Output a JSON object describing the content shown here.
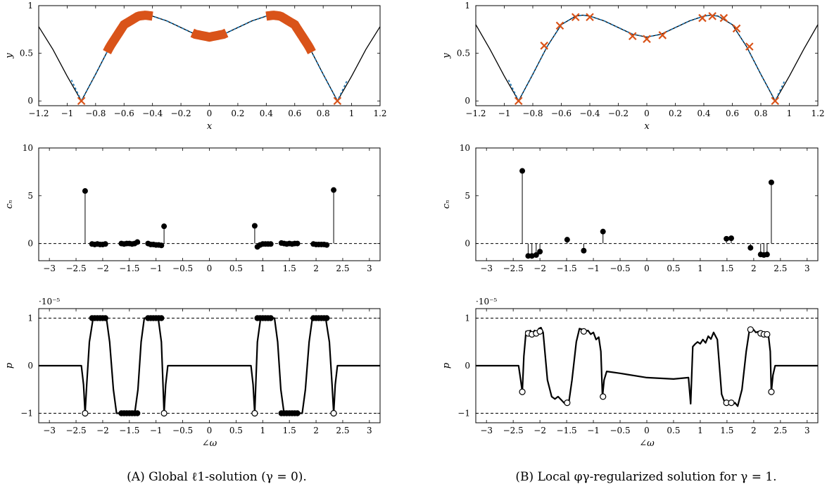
{
  "captions": {
    "left": "(A) Global ℓ1-solution (γ = 0).",
    "right": "(B) Local φγ-regularized solution for γ = 1."
  },
  "colors": {
    "curve": "#000000",
    "dashed_fit": "#1f77b4",
    "marker": "#d95319"
  },
  "chart_data": [
    {
      "id": "top-left",
      "type": "line",
      "xlabel": "x",
      "ylabel": "y",
      "xlim": [
        -1.2,
        1.2
      ],
      "ylim": [
        -0.05,
        1.0
      ],
      "xticks": [
        -1.2,
        -1,
        -0.8,
        -0.6,
        -0.4,
        -0.2,
        0,
        0.2,
        0.4,
        0.6,
        0.8,
        1,
        1.2
      ],
      "yticks": [
        0,
        0.5,
        1
      ],
      "series": [
        {
          "role": "curve",
          "x": [
            -1.2,
            -1.1,
            -1.0,
            -0.9,
            -0.8,
            -0.7,
            -0.6,
            -0.5,
            -0.45,
            -0.4,
            -0.3,
            -0.2,
            -0.1,
            0,
            0.1,
            0.2,
            0.3,
            0.4,
            0.45,
            0.5,
            0.6,
            0.7,
            0.8,
            0.9,
            1.0,
            1.1,
            1.2
          ],
          "y": [
            0.78,
            0.54,
            0.26,
            0.0,
            0.28,
            0.57,
            0.8,
            0.89,
            0.9,
            0.89,
            0.84,
            0.77,
            0.7,
            0.67,
            0.7,
            0.77,
            0.84,
            0.89,
            0.9,
            0.89,
            0.8,
            0.57,
            0.28,
            0.0,
            0.26,
            0.54,
            0.78
          ]
        },
        {
          "role": "fit",
          "x": [
            -0.97,
            -0.9,
            -0.8,
            -0.7,
            -0.6,
            -0.5,
            -0.45,
            -0.4,
            -0.3,
            -0.2,
            -0.1,
            0,
            0.1,
            0.2,
            0.3,
            0.4,
            0.45,
            0.5,
            0.6,
            0.7,
            0.8,
            0.9,
            0.97
          ],
          "y": [
            0.22,
            0.0,
            0.28,
            0.57,
            0.8,
            0.89,
            0.9,
            0.89,
            0.84,
            0.77,
            0.7,
            0.67,
            0.7,
            0.77,
            0.84,
            0.89,
            0.9,
            0.89,
            0.8,
            0.57,
            0.28,
            0.0,
            0.22
          ]
        },
        {
          "role": "support",
          "segments": [
            [
              -0.72,
              -0.4
            ],
            [
              -0.12,
              0.12
            ],
            [
              0.4,
              0.72
            ]
          ]
        },
        {
          "role": "markers",
          "x": [
            -0.9,
            0.9
          ],
          "y": [
            0.0,
            0.0
          ]
        }
      ]
    },
    {
      "id": "top-right",
      "type": "line",
      "xlabel": "x",
      "ylabel": "y",
      "xlim": [
        -1.2,
        1.2
      ],
      "ylim": [
        -0.05,
        1.0
      ],
      "xticks": [
        -1.2,
        -1,
        -0.8,
        -0.6,
        -0.4,
        -0.2,
        0,
        0.2,
        0.4,
        0.6,
        0.8,
        1,
        1.2
      ],
      "yticks": [
        0,
        0.5,
        1
      ],
      "series": [
        {
          "role": "curve",
          "x": [
            -1.2,
            -1.1,
            -1.0,
            -0.9,
            -0.8,
            -0.7,
            -0.6,
            -0.5,
            -0.45,
            -0.4,
            -0.3,
            -0.2,
            -0.1,
            0,
            0.1,
            0.2,
            0.3,
            0.4,
            0.45,
            0.5,
            0.6,
            0.7,
            0.8,
            0.9,
            1.0,
            1.1,
            1.2
          ],
          "y": [
            0.8,
            0.54,
            0.26,
            0.0,
            0.28,
            0.57,
            0.8,
            0.89,
            0.9,
            0.89,
            0.84,
            0.77,
            0.7,
            0.67,
            0.7,
            0.77,
            0.84,
            0.89,
            0.9,
            0.89,
            0.8,
            0.57,
            0.28,
            0.0,
            0.26,
            0.54,
            0.8
          ]
        },
        {
          "role": "fit",
          "x": [
            -0.97,
            -0.9,
            -0.8,
            -0.7,
            -0.6,
            -0.5,
            -0.45,
            -0.4,
            -0.3,
            -0.2,
            -0.1,
            0,
            0.1,
            0.2,
            0.3,
            0.4,
            0.45,
            0.5,
            0.6,
            0.7,
            0.8,
            0.9,
            0.97
          ],
          "y": [
            0.22,
            0.0,
            0.28,
            0.57,
            0.8,
            0.89,
            0.9,
            0.89,
            0.84,
            0.77,
            0.7,
            0.67,
            0.7,
            0.77,
            0.84,
            0.89,
            0.9,
            0.89,
            0.8,
            0.57,
            0.28,
            0.0,
            0.22
          ]
        },
        {
          "role": "markers",
          "x": [
            -0.9,
            -0.72,
            -0.61,
            -0.5,
            -0.4,
            -0.1,
            0,
            0.11,
            0.39,
            0.46,
            0.54,
            0.63,
            0.72,
            0.9
          ],
          "y": [
            0.0,
            0.58,
            0.79,
            0.88,
            0.88,
            0.68,
            0.65,
            0.69,
            0.87,
            0.89,
            0.87,
            0.76,
            0.57,
            0.0
          ]
        }
      ]
    },
    {
      "id": "mid-left",
      "type": "stem",
      "ylabel": "c_n",
      "xlim": [
        -3.2,
        3.2
      ],
      "ylim": [
        -1.8,
        10
      ],
      "xticks": [
        -3,
        -2.5,
        -2,
        -1.5,
        -1,
        -0.5,
        0,
        0.5,
        1,
        1.5,
        2,
        2.5,
        3
      ],
      "yticks": [
        0,
        5,
        10
      ],
      "x": [
        -2.33,
        -2.2,
        -2.15,
        -2.1,
        -2.05,
        -2.0,
        -1.95,
        -1.65,
        -1.6,
        -1.55,
        -1.5,
        -1.45,
        -1.4,
        -1.35,
        -1.15,
        -1.1,
        -1.05,
        -1.0,
        -0.95,
        -0.9,
        -0.85,
        0.85,
        0.9,
        0.95,
        1.0,
        1.05,
        1.1,
        1.15,
        1.35,
        1.4,
        1.45,
        1.5,
        1.55,
        1.6,
        1.65,
        1.95,
        2.0,
        2.05,
        2.1,
        2.15,
        2.2,
        2.33
      ],
      "y": [
        5.5,
        -0.05,
        -0.1,
        -0.05,
        -0.1,
        -0.1,
        -0.05,
        0.0,
        -0.05,
        0.0,
        0.0,
        -0.05,
        0.0,
        0.15,
        0.0,
        -0.1,
        -0.1,
        -0.15,
        -0.15,
        -0.2,
        1.8,
        1.85,
        -0.35,
        -0.15,
        -0.05,
        -0.05,
        -0.05,
        -0.05,
        0.05,
        0.0,
        -0.05,
        0.0,
        -0.05,
        0.0,
        0.0,
        -0.05,
        -0.1,
        -0.1,
        -0.1,
        -0.1,
        -0.15,
        5.6
      ]
    },
    {
      "id": "mid-right",
      "type": "stem",
      "ylabel": "c_n",
      "xlim": [
        -3.2,
        3.2
      ],
      "ylim": [
        -1.8,
        10
      ],
      "xticks": [
        -3,
        -2.5,
        -2,
        -1.5,
        -1,
        -0.5,
        0,
        0.5,
        1,
        1.5,
        2,
        2.5,
        3
      ],
      "yticks": [
        0,
        5,
        10
      ],
      "x": [
        -2.33,
        -2.22,
        -2.15,
        -2.07,
        -2.0,
        -1.49,
        -1.18,
        -0.82,
        1.49,
        1.58,
        1.94,
        2.13,
        2.19,
        2.25,
        2.33
      ],
      "y": [
        7.6,
        -1.3,
        -1.3,
        -1.2,
        -0.85,
        0.4,
        -0.75,
        1.25,
        0.5,
        0.55,
        -0.45,
        -1.15,
        -1.2,
        -1.15,
        6.4
      ]
    },
    {
      "id": "bottom-left",
      "type": "line",
      "xlabel": "∠ω",
      "ylabel": "p",
      "yscale_label": "·10⁻⁵",
      "xlim": [
        -3.2,
        3.2
      ],
      "ylim": [
        -1.2,
        1.2
      ],
      "xticks": [
        -3,
        -2.5,
        -2,
        -1.5,
        -1,
        -0.5,
        0,
        0.5,
        1,
        1.5,
        2,
        2.5,
        3
      ],
      "yticks": [
        -1,
        0,
        1
      ],
      "reference_lines": [
        1,
        -1
      ],
      "series": [
        {
          "role": "dual",
          "x": [
            -3.2,
            -2.4,
            -2.36,
            -2.33,
            -2.3,
            -2.25,
            -2.18,
            -2.12,
            -1.93,
            -1.87,
            -1.8,
            -1.74,
            -1.68,
            -1.4,
            -1.34,
            -1.28,
            -1.22,
            -1.16,
            -0.96,
            -0.9,
            -0.87,
            -0.85,
            -0.82,
            -0.78,
            0,
            0.78,
            0.82,
            0.85,
            0.87,
            0.9,
            0.96,
            1.16,
            1.22,
            1.28,
            1.34,
            1.4,
            1.68,
            1.74,
            1.8,
            1.87,
            1.93,
            2.12,
            2.18,
            2.25,
            2.3,
            2.33,
            2.36,
            2.4,
            3.2
          ],
          "y": [
            0,
            0,
            -0.4,
            -1.0,
            -0.4,
            0.5,
            1.0,
            1.0,
            1.0,
            0.5,
            -0.5,
            -1.0,
            -1.0,
            -1.0,
            -0.5,
            0.5,
            1.0,
            1.0,
            1.0,
            0.5,
            -0.4,
            -1.0,
            -0.4,
            0,
            0,
            0,
            -0.4,
            -1.0,
            -0.4,
            0.5,
            1.0,
            1.0,
            1.0,
            0.5,
            -0.5,
            -1.0,
            -1.0,
            -1.0,
            -0.5,
            0.5,
            1.0,
            1.0,
            1.0,
            0.5,
            -0.4,
            -1.0,
            -0.4,
            0,
            0
          ]
        },
        {
          "role": "open-markers",
          "x": [
            -2.33,
            -0.85,
            0.85,
            2.33
          ],
          "y": [
            -1.0,
            -1.0,
            -1.0,
            -1.0
          ]
        },
        {
          "role": "filled-markers",
          "x": [
            -2.2,
            -2.15,
            -2.1,
            -2.05,
            -2.0,
            -1.95,
            -1.65,
            -1.6,
            -1.55,
            -1.5,
            -1.45,
            -1.4,
            -1.35,
            -1.15,
            -1.1,
            -1.05,
            -1.0,
            -0.95,
            -0.9,
            0.9,
            0.95,
            1.0,
            1.05,
            1.1,
            1.15,
            1.35,
            1.4,
            1.45,
            1.5,
            1.55,
            1.6,
            1.65,
            1.95,
            2.0,
            2.05,
            2.1,
            2.15,
            2.2
          ],
          "y": [
            1,
            1,
            1,
            1,
            1,
            1,
            -1,
            -1,
            -1,
            -1,
            -1,
            -1,
            -1,
            1,
            1,
            1,
            1,
            1,
            1,
            1,
            1,
            1,
            1,
            1,
            1,
            -1,
            -1,
            -1,
            -1,
            -1,
            -1,
            -1,
            1,
            1,
            1,
            1,
            1,
            1
          ]
        }
      ]
    },
    {
      "id": "bottom-right",
      "type": "line",
      "xlabel": "∠ω",
      "ylabel": "p",
      "yscale_label": "·10⁻⁵",
      "xlim": [
        -3.2,
        3.2
      ],
      "ylim": [
        -1.2,
        1.2
      ],
      "xticks": [
        -3,
        -2.5,
        -2,
        -1.5,
        -1,
        -0.5,
        0,
        0.5,
        1,
        1.5,
        2,
        2.5,
        3
      ],
      "yticks": [
        -1,
        0,
        1
      ],
      "reference_lines": [
        1,
        -1
      ],
      "series": [
        {
          "role": "dual",
          "x": [
            -3.2,
            -2.4,
            -2.36,
            -2.33,
            -2.3,
            -2.26,
            -2.22,
            -2.18,
            -2.14,
            -2.1,
            -2.06,
            -2.02,
            -1.98,
            -1.94,
            -1.86,
            -1.78,
            -1.72,
            -1.66,
            -1.6,
            -1.55,
            -1.5,
            -1.46,
            -1.4,
            -1.32,
            -1.26,
            -1.2,
            -1.15,
            -1.1,
            -1.05,
            -1.0,
            -0.95,
            -0.9,
            -0.86,
            -0.83,
            -0.8,
            -0.75,
            -0.5,
            0,
            0.5,
            0.78,
            0.82,
            0.84,
            0.86,
            0.9,
            0.95,
            1.0,
            1.05,
            1.1,
            1.15,
            1.2,
            1.25,
            1.32,
            1.4,
            1.46,
            1.5,
            1.55,
            1.6,
            1.65,
            1.7,
            1.78,
            1.86,
            1.92,
            1.98,
            2.04,
            2.1,
            2.16,
            2.22,
            2.28,
            2.31,
            2.33,
            2.36,
            2.4,
            3.2
          ],
          "y": [
            0,
            0,
            -0.3,
            -0.55,
            0.2,
            0.72,
            0.68,
            0.74,
            0.68,
            0.74,
            0.7,
            0.78,
            0.8,
            0.7,
            -0.3,
            -0.65,
            -0.7,
            -0.65,
            -0.72,
            -0.78,
            -0.82,
            -0.78,
            -0.3,
            0.5,
            0.78,
            0.76,
            0.72,
            0.74,
            0.66,
            0.7,
            0.55,
            0.6,
            0.3,
            -0.65,
            -0.3,
            -0.12,
            -0.16,
            -0.25,
            -0.28,
            -0.25,
            -0.8,
            -0.2,
            0.4,
            0.45,
            0.5,
            0.46,
            0.55,
            0.48,
            0.62,
            0.56,
            0.7,
            0.55,
            -0.6,
            -0.78,
            -0.82,
            -0.77,
            -0.82,
            -0.78,
            -0.85,
            -0.5,
            0.3,
            0.75,
            0.78,
            0.7,
            0.72,
            0.68,
            0.7,
            0.6,
            0.3,
            -0.55,
            -0.2,
            0,
            0
          ]
        },
        {
          "role": "open-markers",
          "x": [
            -2.33,
            -2.22,
            -2.15,
            -2.07,
            -2.0,
            -1.49,
            -1.18,
            -0.82,
            1.49,
            1.58,
            1.94,
            2.13,
            2.19,
            2.25,
            2.33
          ],
          "y": [
            -0.55,
            0.68,
            0.66,
            0.68,
            0.72,
            -0.78,
            0.72,
            -0.65,
            -0.78,
            -0.78,
            0.76,
            0.68,
            0.66,
            0.66,
            -0.55
          ]
        }
      ]
    }
  ]
}
